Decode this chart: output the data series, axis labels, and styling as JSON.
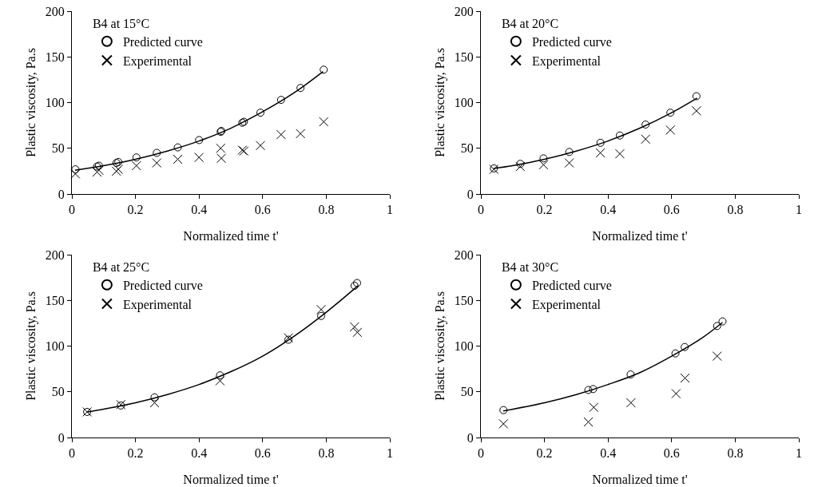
{
  "chart_data": [
    {
      "type": "scatter",
      "legend_title": "B4 at 15°C",
      "xlabel": "Normalized time t'",
      "ylabel": "Plastic viscosity, Pa.s",
      "xlim": [
        0,
        1
      ],
      "ylim": [
        0,
        200
      ],
      "xticks": [
        0,
        0.2,
        0.4,
        0.6,
        0.8,
        1
      ],
      "yticks": [
        0,
        50,
        100,
        150,
        200
      ],
      "grid": false,
      "legend": "top left",
      "series": [
        {
          "name": "Predicted curve",
          "color": "#000000",
          "marker": "circle",
          "x": [
            0.011,
            0.079,
            0.085,
            0.14,
            0.146,
            0.203,
            0.267,
            0.333,
            0.4,
            0.468,
            0.47,
            0.536,
            0.541,
            0.593,
            0.658,
            0.719,
            0.792
          ],
          "values": [
            27,
            30,
            31,
            34,
            35,
            40,
            45,
            51,
            59,
            68,
            69,
            78,
            79,
            89,
            103,
            116,
            136
          ]
        },
        {
          "name": "Experimental",
          "color": "#000000",
          "marker": "cross",
          "x": [
            0.011,
            0.079,
            0.085,
            0.14,
            0.146,
            0.203,
            0.267,
            0.333,
            0.4,
            0.468,
            0.47,
            0.536,
            0.541,
            0.593,
            0.658,
            0.719,
            0.792
          ],
          "values": [
            22,
            24,
            26,
            25,
            27,
            31,
            34,
            38,
            40,
            50,
            39,
            48,
            47,
            53,
            65,
            66,
            79
          ]
        },
        {
          "type": "line",
          "color": "#000000",
          "line_style": "solid",
          "x": [
            0.01,
            0.1,
            0.2,
            0.3,
            0.4,
            0.5,
            0.6,
            0.7,
            0.79
          ],
          "values": [
            26,
            31,
            38,
            47,
            58,
            72,
            90,
            111,
            134
          ]
        }
      ]
    },
    {
      "type": "scatter",
      "legend_title": "B4 at 20°C",
      "xlabel": "Normalized time t'",
      "ylabel": "Plastic viscosity, Pa.s",
      "xlim": [
        0,
        1
      ],
      "ylim": [
        0,
        200
      ],
      "xticks": [
        0,
        0.2,
        0.4,
        0.6,
        0.8,
        1
      ],
      "yticks": [
        0,
        50,
        100,
        150,
        200
      ],
      "grid": false,
      "legend": "top left",
      "series": [
        {
          "name": "Predicted curve",
          "color": "#000000",
          "marker": "circle",
          "x": [
            0.041,
            0.124,
            0.197,
            0.278,
            0.376,
            0.437,
            0.518,
            0.596,
            0.678
          ],
          "values": [
            28,
            33,
            39,
            46,
            56,
            64,
            76,
            89,
            107
          ]
        },
        {
          "name": "Experimental",
          "color": "#000000",
          "marker": "cross",
          "x": [
            0.041,
            0.124,
            0.197,
            0.278,
            0.376,
            0.437,
            0.518,
            0.596,
            0.678
          ],
          "values": [
            27,
            30,
            32,
            34,
            45,
            44,
            60,
            70,
            91
          ]
        },
        {
          "type": "line",
          "color": "#000000",
          "line_style": "solid",
          "x": [
            0.04,
            0.1,
            0.2,
            0.3,
            0.4,
            0.5,
            0.6,
            0.68
          ],
          "values": [
            28,
            31,
            38,
            47,
            58,
            72,
            89,
            105
          ]
        }
      ]
    },
    {
      "type": "scatter",
      "legend_title": "B4 at 25°C",
      "xlabel": "Normalized time t'",
      "ylabel": "Plastic viscosity, Pa.s",
      "xlim": [
        0,
        1
      ],
      "ylim": [
        0,
        200
      ],
      "xticks": [
        0,
        0.2,
        0.4,
        0.6,
        0.8,
        1
      ],
      "yticks": [
        0,
        50,
        100,
        150,
        200
      ],
      "grid": false,
      "legend": "top left",
      "series": [
        {
          "name": "Predicted curve",
          "color": "#000000",
          "marker": "circle",
          "x": [
            0.048,
            0.154,
            0.26,
            0.466,
            0.681,
            0.784,
            0.889,
            0.897
          ],
          "values": [
            28,
            35,
            44,
            68,
            107,
            133,
            166,
            169
          ]
        },
        {
          "name": "Experimental",
          "color": "#000000",
          "marker": "cross",
          "x": [
            0.048,
            0.154,
            0.26,
            0.466,
            0.681,
            0.784,
            0.889,
            0.898
          ],
          "values": [
            28,
            36,
            38,
            62,
            109,
            140,
            121,
            115
          ]
        },
        {
          "type": "line",
          "color": "#000000",
          "line_style": "solid",
          "x": [
            0.05,
            0.1,
            0.2,
            0.3,
            0.4,
            0.5,
            0.6,
            0.7,
            0.8,
            0.9
          ],
          "values": [
            28,
            31,
            38,
            47,
            58,
            72,
            89,
            111,
            137,
            166
          ]
        }
      ]
    },
    {
      "type": "scatter",
      "legend_title": "B4 at 30°C",
      "xlabel": "Normalized time t'",
      "ylabel": "Plastic viscosity, Pa.s",
      "xlim": [
        0,
        1
      ],
      "ylim": [
        0,
        200
      ],
      "xticks": [
        0,
        0.2,
        0.4,
        0.6,
        0.8,
        1
      ],
      "yticks": [
        0,
        50,
        100,
        150,
        200
      ],
      "grid": false,
      "legend": "top left",
      "series": [
        {
          "name": "Predicted curve",
          "color": "#000000",
          "marker": "circle",
          "x": [
            0.071,
            0.338,
            0.353,
            0.471,
            0.612,
            0.641,
            0.743,
            0.76
          ],
          "values": [
            30,
            52,
            53,
            69,
            92,
            99,
            122,
            127
          ]
        },
        {
          "name": "Experimental",
          "color": "#000000",
          "marker": "cross",
          "x": [
            0.071,
            0.338,
            0.355,
            0.472,
            0.614,
            0.642,
            0.743
          ],
          "values": [
            15,
            17,
            33,
            38,
            48,
            65,
            89
          ]
        },
        {
          "type": "line",
          "color": "#000000",
          "line_style": "solid",
          "x": [
            0.07,
            0.2,
            0.3,
            0.4,
            0.5,
            0.6,
            0.7,
            0.76
          ],
          "values": [
            29,
            38,
            47,
            58,
            71,
            89,
            110,
            126
          ]
        }
      ]
    }
  ]
}
